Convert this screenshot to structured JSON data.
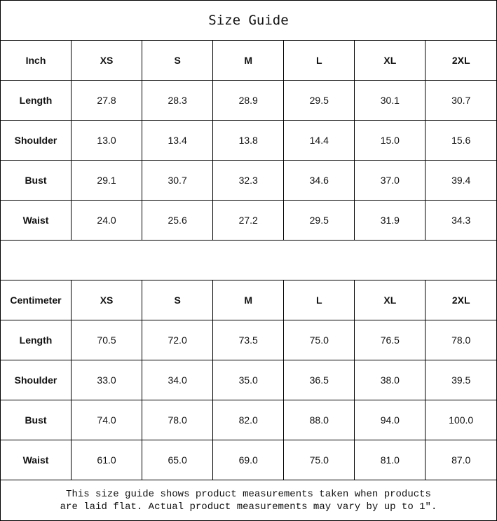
{
  "title": "Size Guide",
  "inch_table": {
    "headers": [
      "Inch",
      "XS",
      "S",
      "M",
      "L",
      "XL",
      "2XL"
    ],
    "rows": [
      [
        "Length",
        "27.8",
        "28.3",
        "28.9",
        "29.5",
        "30.1",
        "30.7"
      ],
      [
        "Shoulder",
        "13.0",
        "13.4",
        "13.8",
        "14.4",
        "15.0",
        "15.6"
      ],
      [
        "Bust",
        "29.1",
        "30.7",
        "32.3",
        "34.6",
        "37.0",
        "39.4"
      ],
      [
        "Waist",
        "24.0",
        "25.6",
        "27.2",
        "29.5",
        "31.9",
        "34.3"
      ]
    ]
  },
  "cm_table": {
    "headers": [
      "Centimeter",
      "XS",
      "S",
      "M",
      "L",
      "XL",
      "2XL"
    ],
    "rows": [
      [
        "Length",
        "70.5",
        "72.0",
        "73.5",
        "75.0",
        "76.5",
        "78.0"
      ],
      [
        "Shoulder",
        "33.0",
        "34.0",
        "35.0",
        "36.5",
        "38.0",
        "39.5"
      ],
      [
        "Bust",
        "74.0",
        "78.0",
        "82.0",
        "88.0",
        "94.0",
        "100.0"
      ],
      [
        "Waist",
        "61.0",
        "65.0",
        "69.0",
        "75.0",
        "81.0",
        "87.0"
      ]
    ]
  },
  "note": {
    "line1": "This size guide shows product measurements taken when products",
    "line2": "are laid flat. Actual product measurements may vary by up to 1″."
  }
}
